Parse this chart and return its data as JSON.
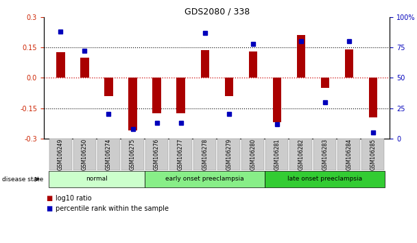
{
  "title": "GDS2080 / 338",
  "samples": [
    "GSM106249",
    "GSM106250",
    "GSM106274",
    "GSM106275",
    "GSM106276",
    "GSM106277",
    "GSM106278",
    "GSM106279",
    "GSM106280",
    "GSM106281",
    "GSM106282",
    "GSM106283",
    "GSM106284",
    "GSM106285"
  ],
  "log10_ratio": [
    0.125,
    0.1,
    -0.09,
    -0.26,
    -0.175,
    -0.175,
    0.135,
    -0.09,
    0.13,
    -0.22,
    0.21,
    -0.05,
    0.14,
    -0.195
  ],
  "percentile_rank": [
    88,
    72,
    20,
    8,
    13,
    13,
    87,
    20,
    78,
    12,
    80,
    30,
    80,
    5
  ],
  "ylim_left": [
    -0.3,
    0.3
  ],
  "ylim_right": [
    0,
    100
  ],
  "yticks_left": [
    -0.3,
    -0.15,
    0.0,
    0.15,
    0.3
  ],
  "yticks_right": [
    0,
    25,
    50,
    75,
    100
  ],
  "ytick_labels_right": [
    "0",
    "25",
    "50",
    "75",
    "100%"
  ],
  "bar_color": "#AA0000",
  "dot_color": "#0000BB",
  "hline0_color": "#CC0000",
  "hline_color": "black",
  "groups": [
    {
      "label": "normal",
      "start": 0,
      "end": 3,
      "color": "#CCFFCC"
    },
    {
      "label": "early onset preeclampsia",
      "start": 4,
      "end": 8,
      "color": "#88EE88"
    },
    {
      "label": "late onset preeclampsia",
      "start": 9,
      "end": 13,
      "color": "#33CC33"
    }
  ],
  "legend_bar_label": "log10 ratio",
  "legend_dot_label": "percentile rank within the sample",
  "disease_state_label": "disease state",
  "bar_width": 0.35
}
